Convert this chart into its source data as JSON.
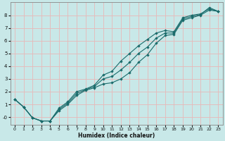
{
  "xlabel": "Humidex (Indice chaleur)",
  "bg_color": "#c8e8e8",
  "line_color": "#1a6b6b",
  "grid_color": "#e8b8b8",
  "xlim": [
    -0.5,
    23.5
  ],
  "ylim": [
    -0.6,
    9.0
  ],
  "xticks": [
    0,
    1,
    2,
    3,
    4,
    5,
    6,
    7,
    8,
    9,
    10,
    11,
    12,
    13,
    14,
    15,
    16,
    17,
    18,
    19,
    20,
    21,
    22,
    23
  ],
  "yticks": [
    0,
    1,
    2,
    3,
    4,
    5,
    6,
    7,
    8
  ],
  "yticklabels": [
    "-0",
    "1",
    "2",
    "3",
    "4",
    "5",
    "6",
    "7",
    "8"
  ],
  "line1_x": [
    0,
    1,
    2,
    3,
    4,
    5,
    6,
    7,
    8,
    9,
    10,
    11,
    12,
    13,
    14,
    15,
    16,
    17,
    18,
    19,
    20,
    21,
    22,
    23
  ],
  "line1_y": [
    1.4,
    0.8,
    -0.05,
    -0.3,
    -0.3,
    0.5,
    1.0,
    1.7,
    2.1,
    2.3,
    2.6,
    2.7,
    3.0,
    3.5,
    4.3,
    4.9,
    5.8,
    6.4,
    6.5,
    7.6,
    7.8,
    8.0,
    8.4,
    8.3
  ],
  "line2_x": [
    0,
    1,
    2,
    3,
    4,
    5,
    6,
    7,
    8,
    9,
    10,
    11,
    12,
    13,
    14,
    15,
    16,
    17,
    18,
    19,
    20,
    21,
    22,
    23
  ],
  "line2_y": [
    1.4,
    0.8,
    -0.05,
    -0.3,
    -0.3,
    0.7,
    1.2,
    2.0,
    2.2,
    2.5,
    3.3,
    3.6,
    4.4,
    5.0,
    5.6,
    6.1,
    6.6,
    6.8,
    6.7,
    7.8,
    8.0,
    8.1,
    8.5,
    8.3
  ],
  "line3_x": [
    0,
    1,
    2,
    3,
    4,
    5,
    6,
    7,
    8,
    9,
    10,
    11,
    12,
    13,
    14,
    15,
    16,
    17,
    18,
    19,
    20,
    21,
    22,
    23
  ],
  "line3_y": [
    1.4,
    0.8,
    -0.05,
    -0.3,
    -0.3,
    0.6,
    1.1,
    1.85,
    2.15,
    2.4,
    3.0,
    3.2,
    3.7,
    4.3,
    5.0,
    5.5,
    6.2,
    6.6,
    6.6,
    7.7,
    7.9,
    8.05,
    8.6,
    8.3
  ]
}
